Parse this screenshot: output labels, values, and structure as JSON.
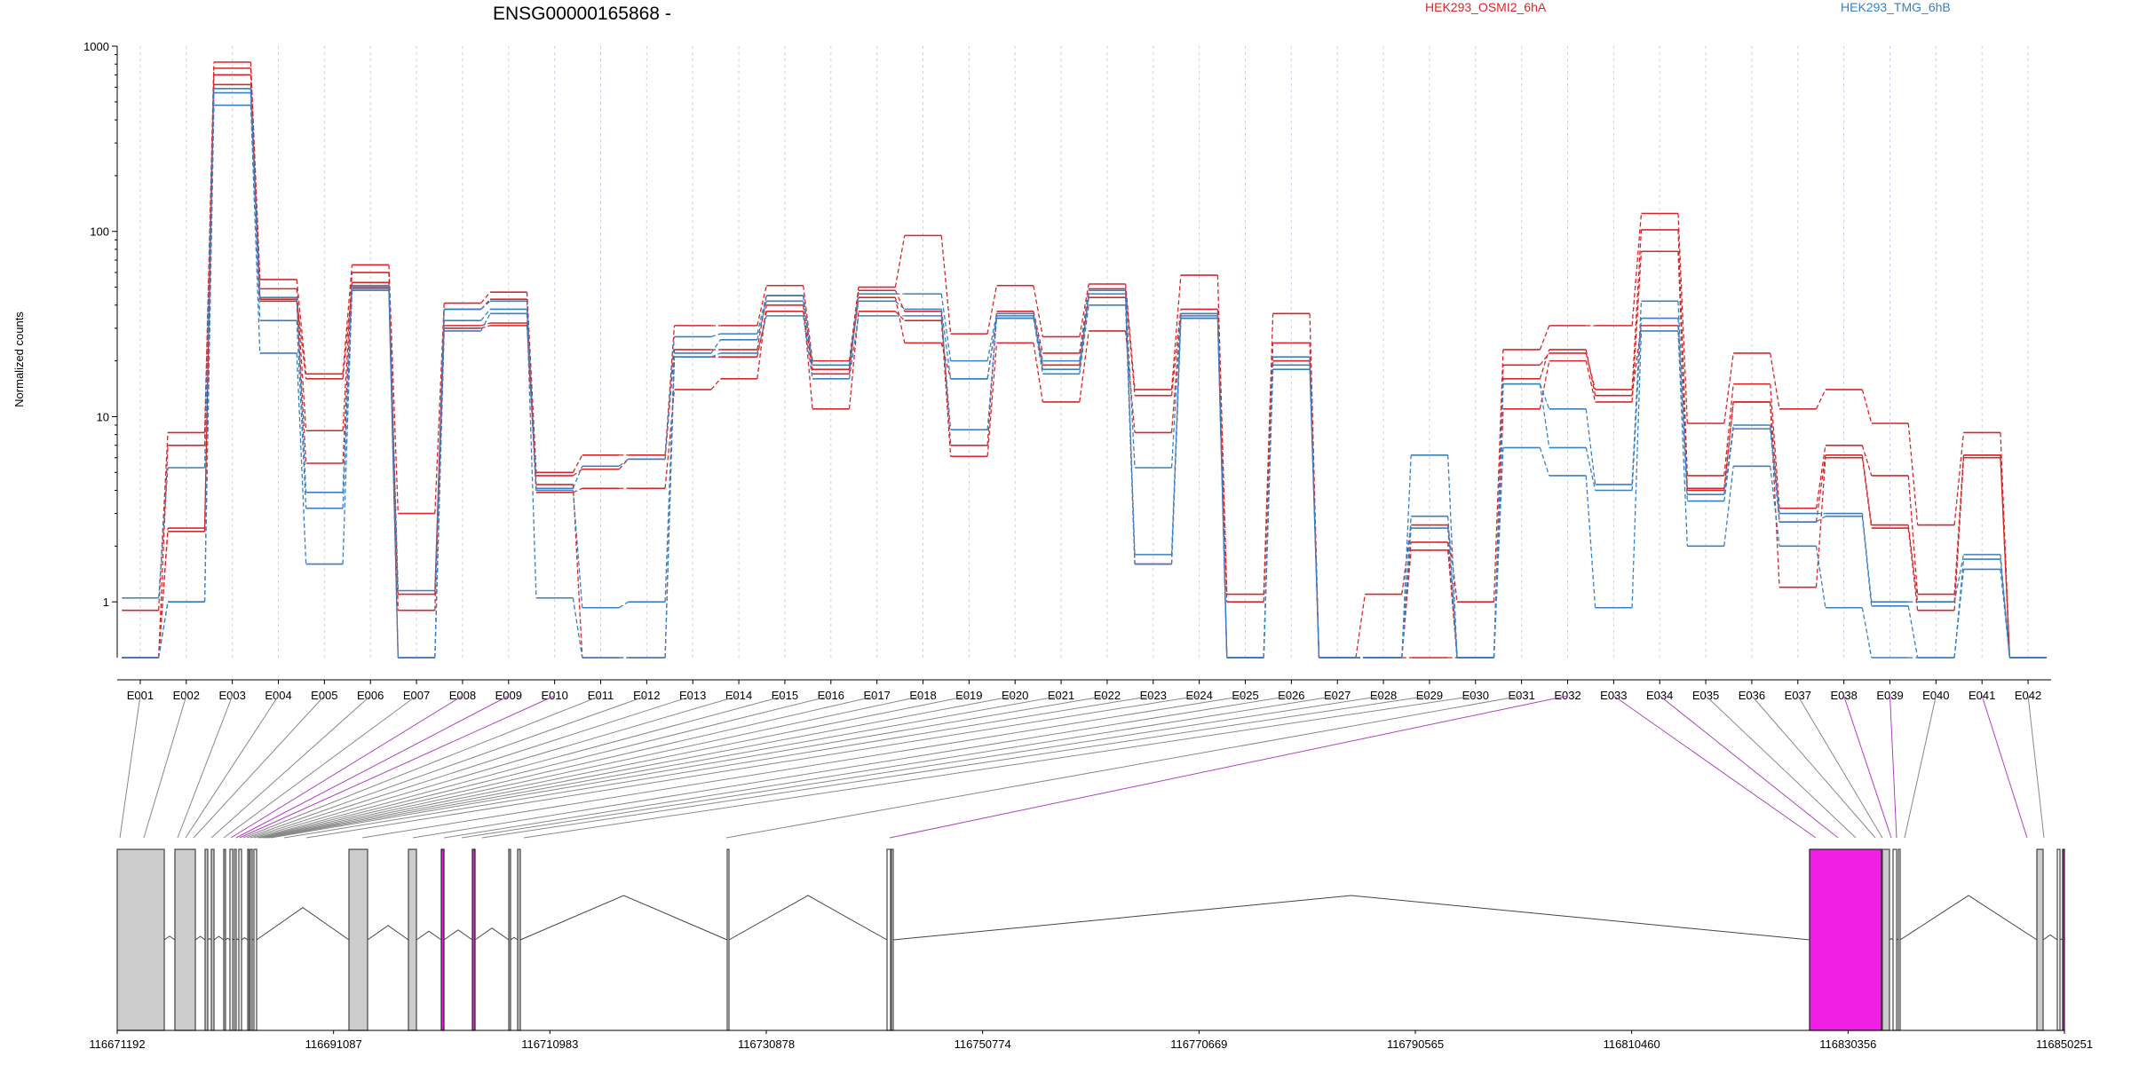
{
  "chart_data": {
    "type": "line",
    "title": "ENSG00000165868 -",
    "ylabel": "Normalized counts",
    "y_scale": "log",
    "ylim": [
      0.5,
      1000
    ],
    "y_ticks": [
      {
        "value": 1000,
        "label": "1000"
      },
      {
        "value": 100,
        "label": "100"
      },
      {
        "value": 10,
        "label": "10"
      },
      {
        "value": 1,
        "label": "1"
      }
    ],
    "grid": "vertical dotted lines at exon centers",
    "legend_placement": "top-right",
    "categories": [
      "E001",
      "E002",
      "E003",
      "E004",
      "E005",
      "E006",
      "E007",
      "E008",
      "E009",
      "E010",
      "E011",
      "E012",
      "E013",
      "E014",
      "E015",
      "E016",
      "E017",
      "E018",
      "E019",
      "E020",
      "E021",
      "E022",
      "E023",
      "E024",
      "E025",
      "E026",
      "E027",
      "E028",
      "E029",
      "E030",
      "E031",
      "E032",
      "E033",
      "E034",
      "E035",
      "E036",
      "E037",
      "E038",
      "E039",
      "E040",
      "E041",
      "E042"
    ],
    "groups": [
      {
        "name": "HEK293_OSMI2_6hA",
        "color": "#d62728"
      },
      {
        "name": "HEK293_TMG_6hB",
        "color": "#3a7fc1"
      }
    ],
    "series": [
      {
        "group": "HEK293_OSMI2_6hA",
        "values": [
          0.9,
          8.2,
          820,
          55,
          17,
          66,
          3,
          41,
          47,
          5,
          6.2,
          6.2,
          31,
          31,
          51,
          20,
          50,
          95,
          28,
          51,
          27,
          52,
          14,
          58,
          1.1,
          36,
          0.5,
          1.1,
          2.6,
          1.0,
          23,
          31,
          31,
          125,
          9.2,
          22,
          11,
          14,
          9.2,
          2.6,
          8.2,
          0.5
        ]
      },
      {
        "group": "HEK293_OSMI2_6hA",
        "values": [
          0.5,
          7,
          760,
          49,
          8.4,
          60,
          1.1,
          38,
          43,
          4.8,
          5.2,
          5.9,
          23,
          23,
          45,
          17,
          48,
          37,
          7,
          37,
          22,
          49,
          13,
          38,
          1.0,
          25,
          0.5,
          0.5,
          2.1,
          0.5,
          19,
          22,
          14,
          102,
          4.8,
          15,
          3.2,
          7,
          4.8,
          1.1,
          6.2,
          0.5
        ]
      },
      {
        "group": "HEK293_OSMI2_6hA",
        "values": [
          0.5,
          2.5,
          700,
          42,
          5.6,
          53,
          0.9,
          31,
          32,
          3.9,
          4.1,
          4.1,
          14,
          16,
          40,
          11,
          37,
          33,
          6.1,
          25,
          12,
          29,
          8.2,
          36,
          0.5,
          20,
          0.5,
          0.5,
          1.9,
          0.5,
          11,
          20,
          12,
          78,
          4.1,
          12,
          1.2,
          6,
          2.5,
          0.9,
          6,
          0.5
        ]
      },
      {
        "group": "HEK293_OSMI2_6hA",
        "values": [
          0.5,
          2.4,
          620,
          43,
          16,
          50,
          0.5,
          30,
          31,
          4.3,
          0.5,
          0.5,
          21,
          21,
          37,
          18,
          44,
          25,
          16,
          34,
          19,
          44,
          1.6,
          34,
          0.5,
          20,
          0.5,
          0.5,
          0.5,
          0.5,
          16,
          23,
          13,
          31,
          4.0,
          12,
          2.7,
          6.2,
          2.6,
          1.0,
          6.2,
          0.5
        ]
      },
      {
        "group": "HEK293_TMG_6hB",
        "values": [
          1.05,
          5.3,
          590,
          44,
          3.9,
          51,
          1.15,
          38,
          42,
          4.1,
          5.4,
          5.9,
          27,
          28,
          45,
          19,
          46,
          46,
          20,
          36,
          20,
          48,
          5.3,
          36,
          0.5,
          21,
          0.5,
          0.5,
          6.2,
          0.5,
          15,
          11,
          4.3,
          42,
          3.8,
          9,
          3,
          3.0,
          1.0,
          1.0,
          1.8,
          0.5
        ]
      },
      {
        "group": "HEK293_TMG_6hB",
        "values": [
          0.5,
          1.0,
          560,
          33,
          3.2,
          49,
          0.5,
          33,
          38,
          4.0,
          0.93,
          1.0,
          22,
          26,
          42,
          19,
          42,
          38,
          16,
          35,
          18,
          46,
          1.8,
          35,
          0.5,
          19,
          0.5,
          0.5,
          2.9,
          0.5,
          15,
          6.8,
          4.0,
          34,
          3.5,
          8.6,
          2.7,
          2.9,
          0.95,
          0.5,
          1.7,
          0.5
        ]
      },
      {
        "group": "HEK293_TMG_6hB",
        "values": [
          0.5,
          1.0,
          480,
          22,
          1.6,
          48,
          0.5,
          29,
          36,
          1.05,
          0.5,
          0.5,
          21,
          22,
          35,
          16,
          35,
          35,
          8.5,
          34,
          17,
          40,
          1.6,
          34,
          0.5,
          18,
          0.5,
          0.5,
          2.5,
          0.5,
          6.8,
          4.8,
          0.93,
          29,
          2.0,
          5.4,
          2.0,
          0.93,
          0.5,
          0.5,
          1.5,
          0.5
        ]
      }
    ],
    "gene_model": {
      "coordinate_labels": [
        "116671192",
        "116691087",
        "116710983",
        "116730878",
        "116750774",
        "116770669",
        "116790565",
        "116810460",
        "116830356",
        "116850251"
      ],
      "highlighted_exons": [
        "E008",
        "E009",
        "E010",
        "E032",
        "E033",
        "E034",
        "E038",
        "E039",
        "E041"
      ]
    }
  }
}
